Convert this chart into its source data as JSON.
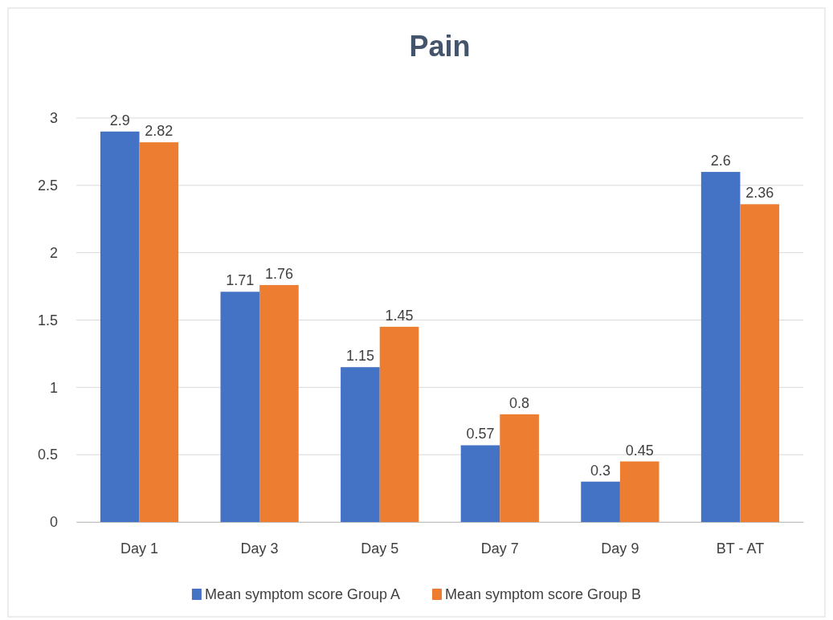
{
  "chart_data": {
    "type": "bar",
    "title": "Pain",
    "categories": [
      "Day 1",
      "Day 3",
      "Day 5",
      "Day 7",
      "Day 9",
      "BT - AT"
    ],
    "series": [
      {
        "name": "Mean symptom score Group A",
        "color": "#4472c4",
        "values": [
          2.9,
          1.71,
          1.15,
          0.57,
          0.3,
          2.6
        ]
      },
      {
        "name": "Mean symptom score Group B",
        "color": "#ed7d31",
        "values": [
          2.82,
          1.76,
          1.45,
          0.8,
          0.45,
          2.36
        ]
      }
    ],
    "ylim": [
      0,
      3
    ],
    "yticks": [
      0,
      0.5,
      1,
      1.5,
      2,
      2.5,
      3
    ],
    "grid": "y",
    "legend": "bottom",
    "data_labels": true
  }
}
